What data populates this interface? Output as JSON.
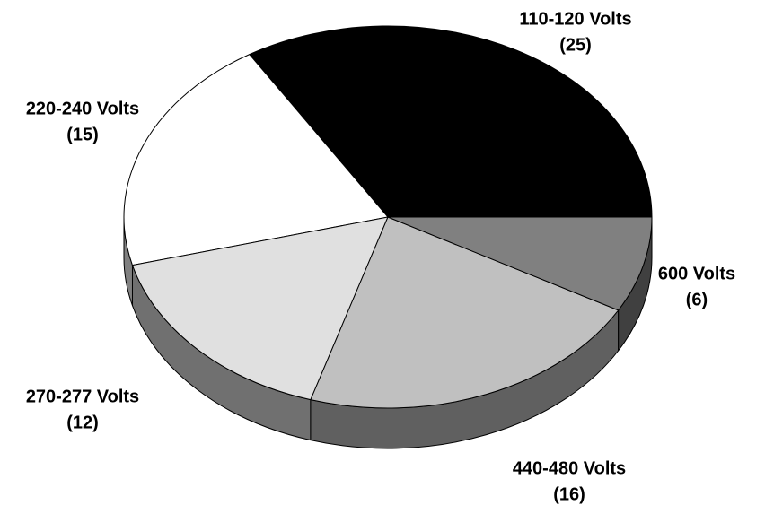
{
  "chart_data": {
    "type": "pie",
    "categories": [
      "110-120 Volts",
      "220-240 Volts",
      "270-277 Volts",
      "440-480 Volts",
      "600 Volts"
    ],
    "values": [
      25,
      15,
      12,
      16,
      6
    ],
    "value_labels": [
      "(25)",
      "(15)",
      "(12)",
      "(16)",
      "(6)"
    ],
    "colors": [
      "#000000",
      "#ffffff",
      "#e0e0e0",
      "#c0c0c0",
      "#808080"
    ]
  }
}
